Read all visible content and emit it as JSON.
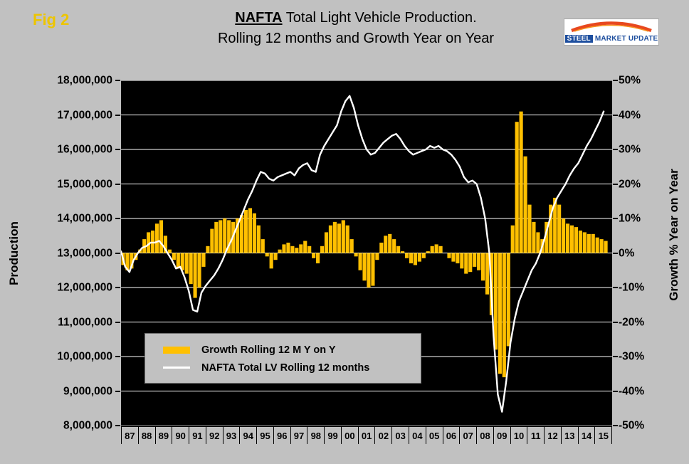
{
  "fig_label": "Fig 2",
  "title": {
    "emphasis": "NAFTA",
    "line1_rest": " Total Light Vehicle Production.",
    "line2": "Rolling 12 months and Growth Year on Year"
  },
  "logo": {
    "word1": "STEEL",
    "word2": "MARKET",
    "word3": "UPDATE"
  },
  "axes": {
    "left_title": "Production",
    "right_title": "Growth % Year on Year",
    "left_ticks": [
      "18,000,000",
      "17,000,000",
      "16,000,000",
      "15,000,000",
      "14,000,000",
      "13,000,000",
      "12,000,000",
      "11,000,000",
      "10,000,000",
      "9,000,000",
      "8,000,000"
    ],
    "right_ticks": [
      "50%",
      "40%",
      "30%",
      "20%",
      "10%",
      "0%",
      "-10%",
      "-20%",
      "-30%",
      "-40%",
      "-50%"
    ],
    "x_labels": [
      "87",
      "88",
      "89",
      "90",
      "91",
      "92",
      "93",
      "94",
      "95",
      "96",
      "97",
      "98",
      "99",
      "00",
      "01",
      "02",
      "03",
      "04",
      "05",
      "06",
      "07",
      "08",
      "09",
      "10",
      "11",
      "12",
      "13",
      "14",
      "15"
    ]
  },
  "legend": {
    "items": [
      {
        "swatch": "bar",
        "label": "Growth Rolling 12 M Y on Y"
      },
      {
        "swatch": "line",
        "label": "NAFTA Total LV Rolling 12 months"
      }
    ]
  },
  "colors": {
    "bars": "#FFC000",
    "line": "#FFFFFF",
    "grid": "#FFFFFF",
    "plot_bg": "#000000",
    "page_bg": "#C1C1C1",
    "fig_label": "#EDC500",
    "logo_blue": "#1D4E9E",
    "logo_red": "#E8481E",
    "logo_orange": "#F7941D"
  },
  "chart_data": {
    "type": "combo (bar + line)",
    "title": "NAFTA Total Light Vehicle Production. Rolling 12 months and Growth Year on Year",
    "x_start": 1987.0,
    "x_step": 0.25,
    "x_domain": [
      1987.0,
      2016.0
    ],
    "x_tick_labels": [
      "87",
      "88",
      "89",
      "90",
      "91",
      "92",
      "93",
      "94",
      "95",
      "96",
      "97",
      "98",
      "99",
      "00",
      "01",
      "02",
      "03",
      "04",
      "05",
      "06",
      "07",
      "08",
      "09",
      "10",
      "11",
      "12",
      "13",
      "14",
      "15"
    ],
    "left_axis": {
      "title": "Production",
      "min": 8000000,
      "max": 18000000,
      "step": 1000000
    },
    "right_axis": {
      "title": "Growth % Year on Year",
      "min": -50,
      "max": 50,
      "step": 10,
      "unit": "%"
    },
    "grid": "horizontal white lines on black plot",
    "legend_position": "inside lower-left",
    "note": "Values estimated from chart at quarterly resolution. Production series in millions of vehicles (rolling 12 months); growth series in percent year-on-year, plotted as bars from the 0% line (aligned with 13,000,000).",
    "series": [
      {
        "name": "Growth Rolling 12 M Y on Y",
        "type": "bar",
        "axis": "right",
        "unit": "percent",
        "color": "#FFC000",
        "values": [
          -3.5,
          -5,
          -4.5,
          -2,
          1,
          4,
          6,
          6.5,
          8.5,
          9.5,
          5,
          1,
          -2,
          -4.5,
          -5,
          -6,
          -9,
          -13,
          -10,
          -4,
          2,
          7,
          9,
          9.5,
          10,
          9.5,
          9,
          10,
          11,
          12.5,
          13,
          11.5,
          8,
          4,
          -1,
          -4.5,
          -2,
          1,
          2.5,
          3,
          2,
          1.5,
          2.5,
          3.5,
          2,
          -1.5,
          -3,
          2,
          6,
          8,
          9,
          8.5,
          9.5,
          8,
          4,
          -1,
          -5,
          -8,
          -10,
          -9.5,
          -2,
          3,
          5,
          5.5,
          4,
          2,
          0.5,
          -1.5,
          -3,
          -3.5,
          -2.5,
          -1.5,
          0.5,
          2,
          2.5,
          2,
          0,
          -1.5,
          -2.5,
          -3,
          -4.5,
          -6,
          -5.5,
          -4,
          -5,
          -8,
          -12,
          -18,
          -28,
          -35,
          -36,
          -27,
          8,
          38,
          41,
          28,
          14,
          9,
          6,
          4,
          9,
          14,
          16,
          14,
          10,
          8.5,
          8,
          7.5,
          6.5,
          6,
          5.5,
          5.5,
          4.5,
          4,
          3.5
        ]
      },
      {
        "name": "NAFTA Total LV Rolling 12 months",
        "type": "line",
        "axis": "left",
        "unit": "millions of vehicles",
        "color": "#FFFFFF",
        "values": [
          13.05,
          12.6,
          12.45,
          12.8,
          13.0,
          13.15,
          13.2,
          13.3,
          13.3,
          13.35,
          13.2,
          13.0,
          12.8,
          12.55,
          12.6,
          12.3,
          11.9,
          11.35,
          11.3,
          11.85,
          12.05,
          12.2,
          12.35,
          12.55,
          12.8,
          13.1,
          13.35,
          13.65,
          13.95,
          14.25,
          14.55,
          14.8,
          15.1,
          15.35,
          15.3,
          15.15,
          15.1,
          15.2,
          15.25,
          15.3,
          15.35,
          15.25,
          15.45,
          15.55,
          15.6,
          15.4,
          15.35,
          15.85,
          16.1,
          16.3,
          16.5,
          16.7,
          17.1,
          17.4,
          17.55,
          17.2,
          16.7,
          16.3,
          16.0,
          15.85,
          15.9,
          16.05,
          16.2,
          16.3,
          16.4,
          16.45,
          16.3,
          16.1,
          15.95,
          15.85,
          15.9,
          15.95,
          16.0,
          16.1,
          16.05,
          16.1,
          16.0,
          15.95,
          15.85,
          15.7,
          15.5,
          15.2,
          15.05,
          15.1,
          15.0,
          14.6,
          14.0,
          13.0,
          10.6,
          8.9,
          8.4,
          9.3,
          10.4,
          11.1,
          11.6,
          11.9,
          12.2,
          12.5,
          12.7,
          13.0,
          13.4,
          13.85,
          14.3,
          14.6,
          14.8,
          15.0,
          15.25,
          15.45,
          15.6,
          15.85,
          16.1,
          16.3,
          16.55,
          16.8,
          17.1
        ]
      }
    ]
  }
}
